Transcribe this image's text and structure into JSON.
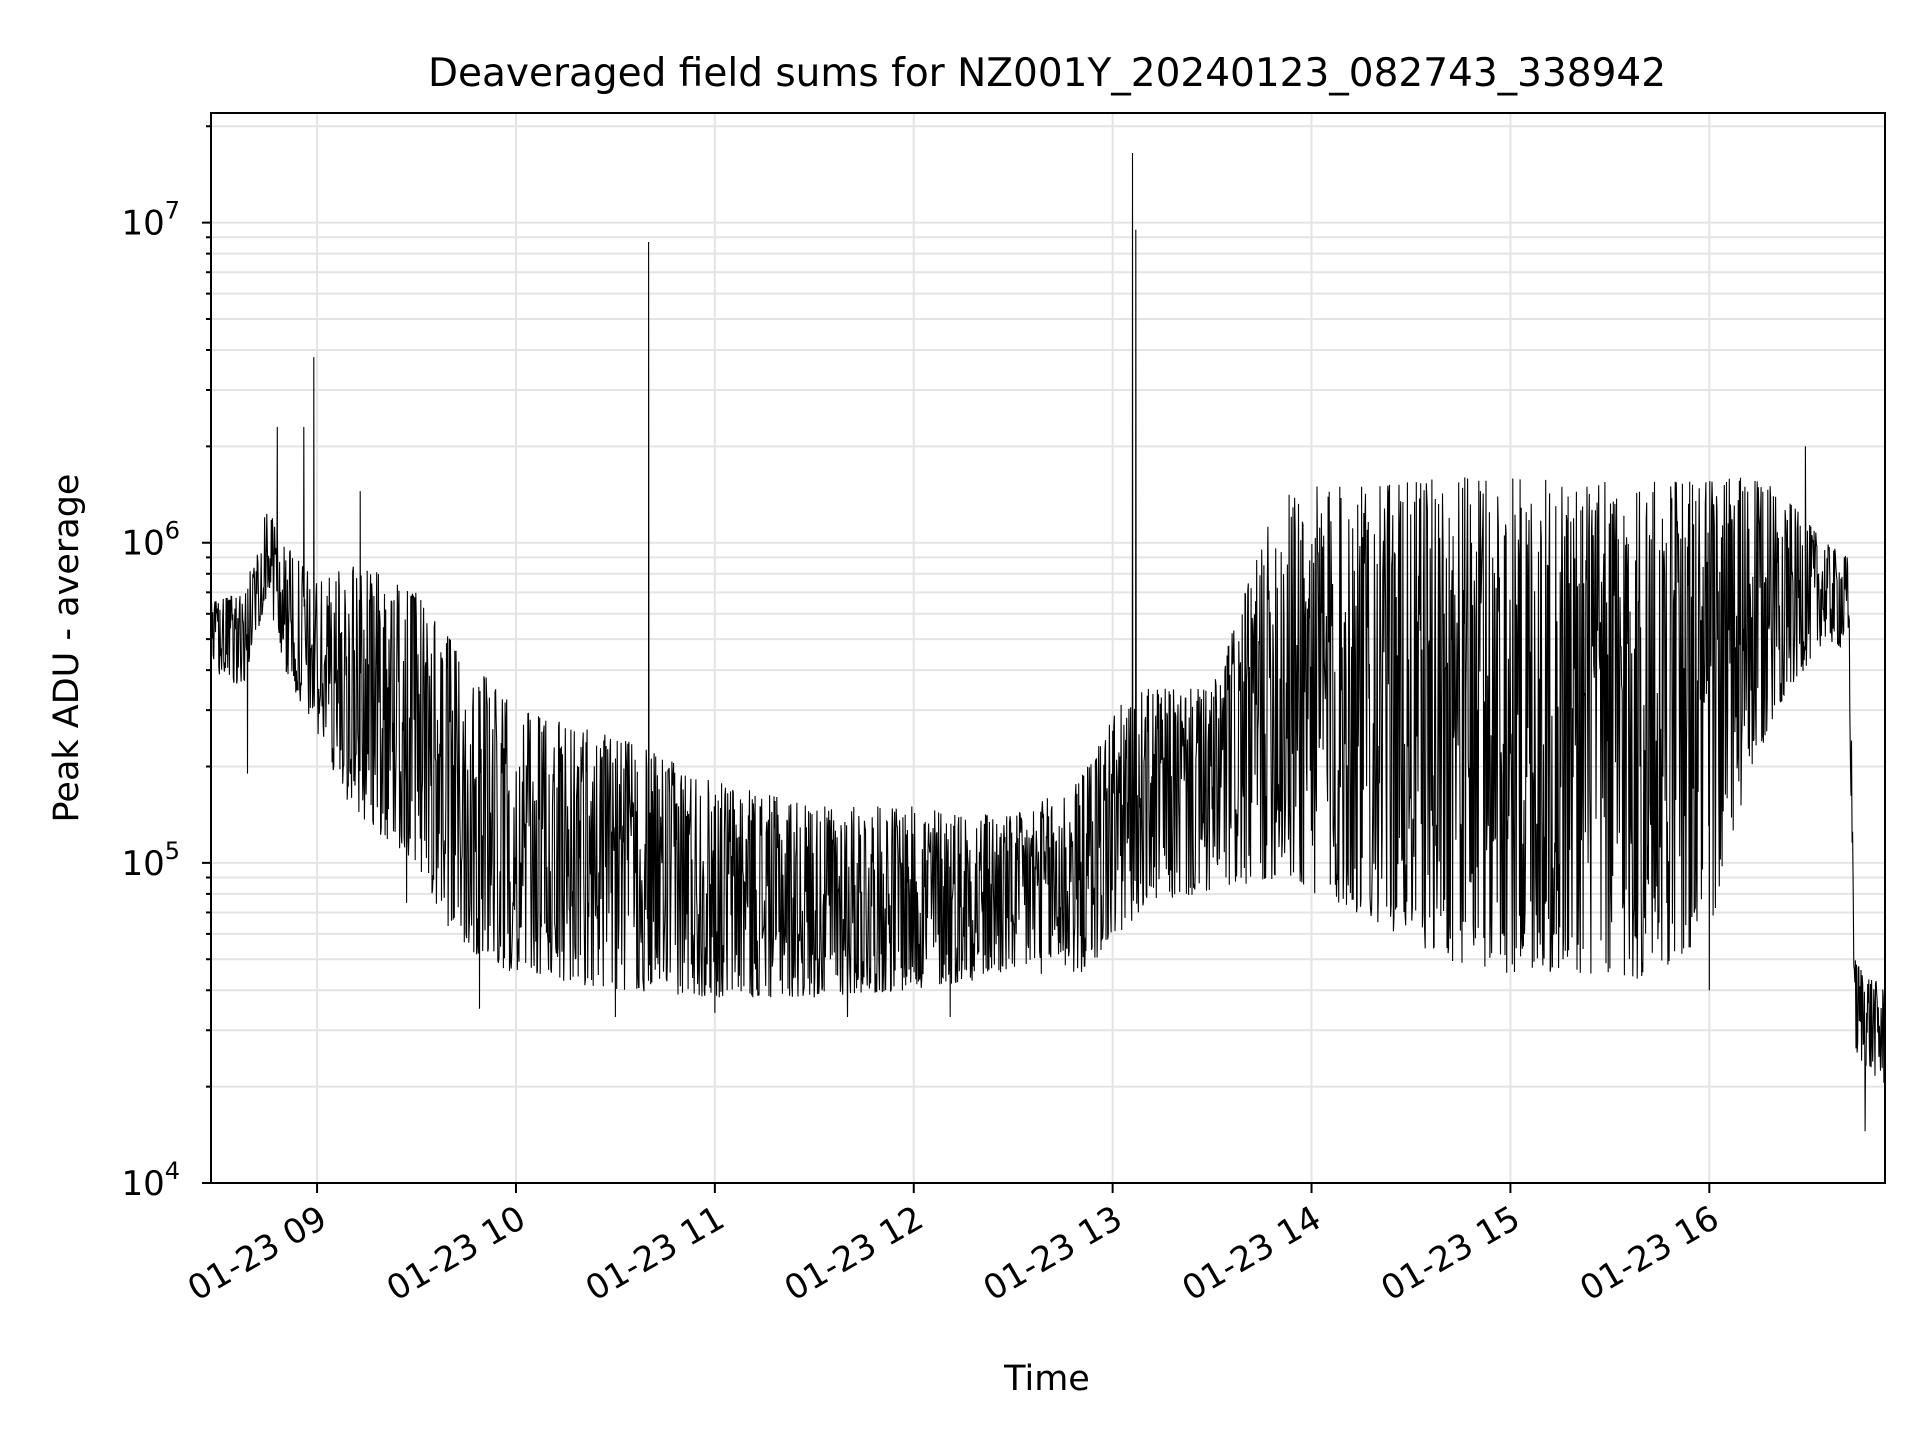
{
  "chart_data": {
    "type": "line",
    "title": "Deaveraged field sums for NZ001Y_20240123_082743_338942",
    "xlabel": "Time",
    "ylabel": "Peak ADU - average",
    "yscale": "log",
    "ylim": [
      10000,
      22000000
    ],
    "xlim": [
      "2024-01-23 08:28",
      "2024-01-23 16:53"
    ],
    "grid": "on (major and minor)",
    "x_ticks": [
      "2024-01-23 09:00",
      "2024-01-23 10:00",
      "2024-01-23 11:00",
      "2024-01-23 12:00",
      "2024-01-23 13:00",
      "2024-01-23 14:00",
      "2024-01-23 15:00",
      "2024-01-23 16:00"
    ],
    "x_tick_labels": [
      "01-23 09",
      "01-23 10",
      "01-23 11",
      "01-23 12",
      "01-23 13",
      "01-23 14",
      "01-23 15",
      "01-23 16"
    ],
    "y_tick_labels": [
      {
        "value": 10000,
        "base": "10",
        "exp": "4"
      },
      {
        "value": 100000,
        "base": "10",
        "exp": "5"
      },
      {
        "value": 1000000,
        "base": "10",
        "exp": "6"
      },
      {
        "value": 10000000,
        "base": "10",
        "exp": "7"
      }
    ],
    "series": [
      {
        "color": "#000000",
        "band_min": [
          [
            "2024-01-23 08:28",
            400000
          ],
          [
            "2024-01-23 08:38",
            350000
          ],
          [
            "2024-01-23 08:45",
            700000
          ],
          [
            "2024-01-23 08:50",
            400000
          ],
          [
            "2024-01-23 09:00",
            250000
          ],
          [
            "2024-01-23 09:10",
            150000
          ],
          [
            "2024-01-23 09:20",
            120000
          ],
          [
            "2024-01-23 09:30",
            100000
          ],
          [
            "2024-01-23 09:40",
            60000
          ],
          [
            "2024-01-23 09:50",
            50000
          ],
          [
            "2024-01-23 10:00",
            45000
          ],
          [
            "2024-01-23 10:30",
            40000
          ],
          [
            "2024-01-23 11:00",
            38000
          ],
          [
            "2024-01-23 11:30",
            38000
          ],
          [
            "2024-01-23 12:00",
            40000
          ],
          [
            "2024-01-23 12:30",
            45000
          ],
          [
            "2024-01-23 12:50",
            45000
          ],
          [
            "2024-01-23 13:00",
            55000
          ],
          [
            "2024-01-23 13:10",
            75000
          ],
          [
            "2024-01-23 13:30",
            80000
          ],
          [
            "2024-01-23 13:50",
            90000
          ],
          [
            "2024-01-23 14:00",
            80000
          ],
          [
            "2024-01-23 14:20",
            65000
          ],
          [
            "2024-01-23 14:40",
            50000
          ],
          [
            "2024-01-23 15:00",
            45000
          ],
          [
            "2024-01-23 15:20",
            45000
          ],
          [
            "2024-01-23 15:40",
            42000
          ],
          [
            "2024-01-23 16:00",
            60000
          ],
          [
            "2024-01-23 16:10",
            150000
          ],
          [
            "2024-01-23 16:20",
            300000
          ],
          [
            "2024-01-23 16:35",
            500000
          ],
          [
            "2024-01-23 16:42",
            450000
          ],
          [
            "2024-01-23 16:44",
            25000
          ],
          [
            "2024-01-23 16:53",
            20000
          ]
        ],
        "band_max": [
          [
            "2024-01-23 08:28",
            650000
          ],
          [
            "2024-01-23 08:38",
            700000
          ],
          [
            "2024-01-23 08:45",
            1300000
          ],
          [
            "2024-01-23 08:50",
            1000000
          ],
          [
            "2024-01-23 09:00",
            750000
          ],
          [
            "2024-01-23 09:10",
            850000
          ],
          [
            "2024-01-23 09:20",
            800000
          ],
          [
            "2024-01-23 09:30",
            700000
          ],
          [
            "2024-01-23 09:40",
            500000
          ],
          [
            "2024-01-23 09:50",
            400000
          ],
          [
            "2024-01-23 10:00",
            300000
          ],
          [
            "2024-01-23 10:30",
            250000
          ],
          [
            "2024-01-23 11:00",
            180000
          ],
          [
            "2024-01-23 11:30",
            150000
          ],
          [
            "2024-01-23 12:00",
            150000
          ],
          [
            "2024-01-23 12:30",
            140000
          ],
          [
            "2024-01-23 12:50",
            180000
          ],
          [
            "2024-01-23 13:00",
            300000
          ],
          [
            "2024-01-23 13:10",
            350000
          ],
          [
            "2024-01-23 13:30",
            350000
          ],
          [
            "2024-01-23 13:50",
            1400000
          ],
          [
            "2024-01-23 14:00",
            1500000
          ],
          [
            "2024-01-23 14:20",
            1500000
          ],
          [
            "2024-01-23 14:40",
            1600000
          ],
          [
            "2024-01-23 15:00",
            1600000
          ],
          [
            "2024-01-23 15:20",
            1550000
          ],
          [
            "2024-01-23 15:40",
            1550000
          ],
          [
            "2024-01-23 16:00",
            1600000
          ],
          [
            "2024-01-23 16:10",
            1600000
          ],
          [
            "2024-01-23 16:20",
            1500000
          ],
          [
            "2024-01-23 16:35",
            1000000
          ],
          [
            "2024-01-23 16:42",
            900000
          ],
          [
            "2024-01-23 16:44",
            50000
          ],
          [
            "2024-01-23 16:53",
            40000
          ]
        ],
        "spikes": [
          [
            "2024-01-23 08:48",
            2300000
          ],
          [
            "2024-01-23 08:56",
            2300000
          ],
          [
            "2024-01-23 08:59",
            3800000
          ],
          [
            "2024-01-23 09:13",
            1450000
          ],
          [
            "2024-01-23 10:40",
            8700000
          ],
          [
            "2024-01-23 13:06",
            16500000
          ],
          [
            "2024-01-23 13:07",
            9500000
          ],
          [
            "2024-01-23 16:29",
            2000000
          ]
        ],
        "dips": [
          [
            "2024-01-23 08:39",
            190000
          ],
          [
            "2024-01-23 09:27",
            75000
          ],
          [
            "2024-01-23 09:49",
            35000
          ],
          [
            "2024-01-23 10:30",
            33000
          ],
          [
            "2024-01-23 11:00",
            34000
          ],
          [
            "2024-01-23 11:40",
            33000
          ],
          [
            "2024-01-23 12:11",
            33000
          ],
          [
            "2024-01-23 16:00",
            40000
          ],
          [
            "2024-01-23 16:47",
            14500
          ]
        ]
      }
    ]
  }
}
